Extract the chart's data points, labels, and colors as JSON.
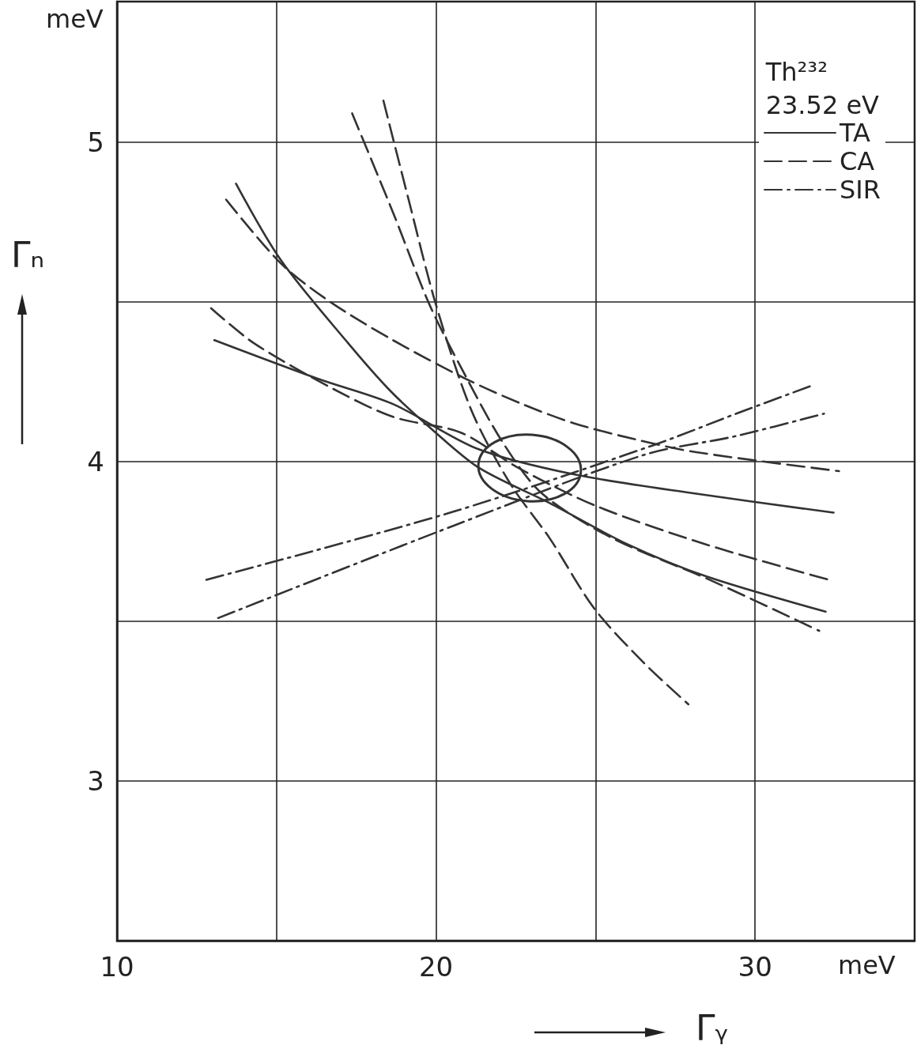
{
  "chart_data": {
    "type": "line",
    "xlabel": "Γᵧ",
    "ylabel": "Γₙ",
    "legend_title": "Th²³²\n23.52 eV",
    "annotations": [
      "meV",
      "meV"
    ],
    "xlim": [
      10,
      35
    ],
    "ylim": [
      2.5,
      5.44
    ],
    "xticks": [
      10,
      {
        "value": 15,
        "label": null
      },
      20,
      {
        "value": 25,
        "label": null
      },
      30,
      {
        "value": 35,
        "label": null
      }
    ],
    "yticks": [
      {
        "value": 2.5,
        "label": null
      },
      3,
      {
        "value": 3.5,
        "label": null
      },
      4,
      {
        "value": 4.5,
        "label": null
      },
      5
    ],
    "grid": true,
    "legend": "top right",
    "marker": "none",
    "series": [
      {
        "name": "TA",
        "color": "#333333",
        "line_style": "solid",
        "x": [
          13.73,
          15.14,
          17.25,
          18.58,
          19.88,
          21.35,
          23.56,
          26.02,
          28.48,
          32.21
        ],
        "values": [
          4.87,
          4.63,
          4.37,
          4.22,
          4.1,
          3.98,
          3.87,
          3.74,
          3.64,
          3.53
        ]
      },
      {
        "color": "#333333",
        "line_style": "solid",
        "x": [
          13.05,
          16.27,
          18.65,
          21.3,
          24.32,
          28.11,
          32.46
        ],
        "values": [
          4.38,
          4.26,
          4.18,
          4.04,
          3.96,
          3.9,
          3.84
        ]
      },
      {
        "name": "CA",
        "color": "#333333",
        "line_style": "dashed",
        "x": [
          18.35,
          19.14,
          20.0,
          21.11,
          22.33,
          23.56,
          24.96,
          26.51,
          27.91
        ],
        "values": [
          5.13,
          4.82,
          4.49,
          4.16,
          3.93,
          3.76,
          3.54,
          3.37,
          3.24
        ]
      },
      {
        "color": "#333333",
        "line_style": "dashed",
        "x": [
          17.37,
          18.65,
          19.8,
          20.86,
          22.09,
          23.32,
          25.53,
          28.57,
          32.01
        ],
        "values": [
          5.09,
          4.78,
          4.49,
          4.28,
          4.06,
          3.9,
          3.76,
          3.63,
          3.47
        ]
      },
      {
        "color": "#333333",
        "line_style": "dashed",
        "x": [
          13.42,
          15.14,
          16.68,
          18.65,
          20.91,
          22.7,
          24.32,
          26.22,
          28.11,
          32.63
        ],
        "values": [
          4.82,
          4.62,
          4.5,
          4.38,
          4.26,
          4.18,
          4.12,
          4.07,
          4.03,
          3.97
        ]
      },
      {
        "color": "#333333",
        "line_style": "dashed",
        "x": [
          12.95,
          14.3,
          16.73,
          18.65,
          20.79,
          22.58,
          25.04,
          28.48,
          32.31
        ],
        "values": [
          4.48,
          4.37,
          4.23,
          4.14,
          4.09,
          3.98,
          3.86,
          3.74,
          3.63
        ]
      },
      {
        "name": "SIR",
        "color": "#333333",
        "line_style": "dashdot",
        "x": [
          12.8,
          20.44,
          26.78,
          29.41,
          31.84
        ],
        "values": [
          3.63,
          3.84,
          4.05,
          4.15,
          4.24
        ]
      },
      {
        "color": "#333333",
        "line_style": "dashdot",
        "x": [
          13.17,
          20.57,
          26.49,
          29.41,
          32.16
        ],
        "values": [
          3.51,
          3.8,
          4.02,
          4.08,
          4.15
        ]
      }
    ]
  }
}
